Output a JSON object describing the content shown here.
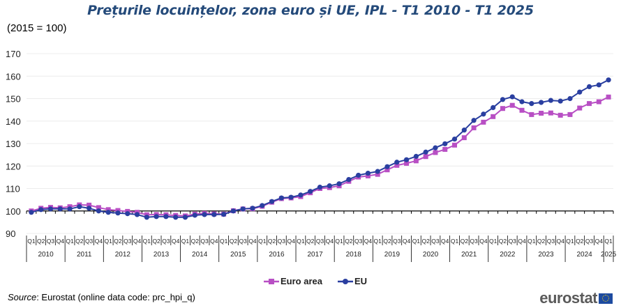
{
  "title": "Prețurile locuințelor, zona euro și UE, IPL - T1 2010 - T1 2025",
  "subtitle": "(2015 = 100)",
  "source": {
    "label": "Source",
    "text": ": Eurostat (online data code: prc_hpi_q)"
  },
  "brand": "eurostat",
  "chart_data": {
    "type": "line",
    "title": "Prețurile locuințelor, zona euro și UE, IPL - T1 2010 - T1 2025",
    "ylabel": "(2015 = 100)",
    "xlabel": "",
    "ylim": [
      90,
      170
    ],
    "yticks": [
      90,
      100,
      110,
      120,
      130,
      140,
      150,
      160,
      170
    ],
    "grid": true,
    "legend_position": "bottom",
    "years": [
      "2010",
      "2011",
      "2012",
      "2013",
      "2014",
      "2015",
      "2016",
      "2017",
      "2018",
      "2019",
      "2020",
      "2021",
      "2022",
      "2023",
      "2024",
      "2025"
    ],
    "quarter_labels": [
      "Q1",
      "Q2",
      "Q3",
      "Q4"
    ],
    "x": [
      "2010Q1",
      "2010Q2",
      "2010Q3",
      "2010Q4",
      "2011Q1",
      "2011Q2",
      "2011Q3",
      "2011Q4",
      "2012Q1",
      "2012Q2",
      "2012Q3",
      "2012Q4",
      "2013Q1",
      "2013Q2",
      "2013Q3",
      "2013Q4",
      "2014Q1",
      "2014Q2",
      "2014Q3",
      "2014Q4",
      "2015Q1",
      "2015Q2",
      "2015Q3",
      "2015Q4",
      "2016Q1",
      "2016Q2",
      "2016Q3",
      "2016Q4",
      "2017Q1",
      "2017Q2",
      "2017Q3",
      "2017Q4",
      "2018Q1",
      "2018Q2",
      "2018Q3",
      "2018Q4",
      "2019Q1",
      "2019Q2",
      "2019Q3",
      "2019Q4",
      "2020Q1",
      "2020Q2",
      "2020Q3",
      "2020Q4",
      "2021Q1",
      "2021Q2",
      "2021Q3",
      "2021Q4",
      "2022Q1",
      "2022Q2",
      "2022Q3",
      "2022Q4",
      "2023Q1",
      "2023Q2",
      "2023Q3",
      "2023Q4",
      "2024Q1",
      "2024Q2",
      "2024Q3",
      "2024Q4",
      "2025Q1"
    ],
    "series": [
      {
        "name": "Euro area",
        "color": "#b84fc4",
        "marker": "square",
        "values": [
          100.0,
          101.2,
          101.6,
          101.4,
          101.9,
          102.7,
          102.6,
          101.5,
          100.6,
          100.2,
          99.8,
          99.4,
          98.3,
          98.4,
          98.3,
          98.0,
          97.8,
          98.6,
          98.9,
          98.7,
          98.6,
          100.1,
          100.9,
          101.0,
          102.1,
          103.9,
          105.5,
          105.8,
          106.4,
          108.1,
          110.0,
          110.4,
          111.2,
          113.2,
          115.1,
          115.6,
          116.3,
          118.3,
          120.3,
          121.2,
          122.3,
          124.2,
          126.0,
          127.4,
          129.3,
          132.6,
          137.0,
          139.5,
          142.0,
          145.6,
          147.0,
          144.8,
          142.9,
          143.5,
          143.6,
          142.6,
          142.9,
          145.8,
          147.8,
          148.6,
          150.7
        ]
      },
      {
        "name": "EU",
        "color": "#2a3fa0",
        "marker": "circle",
        "values": [
          99.4,
          100.6,
          100.9,
          100.9,
          100.9,
          101.9,
          101.2,
          100.0,
          99.4,
          99.1,
          98.8,
          98.4,
          97.2,
          97.5,
          97.5,
          97.2,
          97.2,
          98.1,
          98.4,
          98.4,
          98.5,
          100.0,
          100.9,
          101.2,
          102.4,
          104.2,
          105.8,
          106.1,
          107.1,
          108.7,
          110.6,
          111.2,
          112.1,
          114.0,
          115.9,
          116.8,
          117.6,
          119.7,
          121.7,
          122.8,
          124.3,
          126.2,
          128.1,
          129.9,
          132.0,
          136.0,
          140.3,
          143.1,
          146.0,
          149.6,
          150.8,
          148.6,
          147.8,
          148.3,
          149.2,
          148.9,
          150.0,
          152.9,
          155.3,
          156.1,
          158.3
        ]
      }
    ]
  }
}
